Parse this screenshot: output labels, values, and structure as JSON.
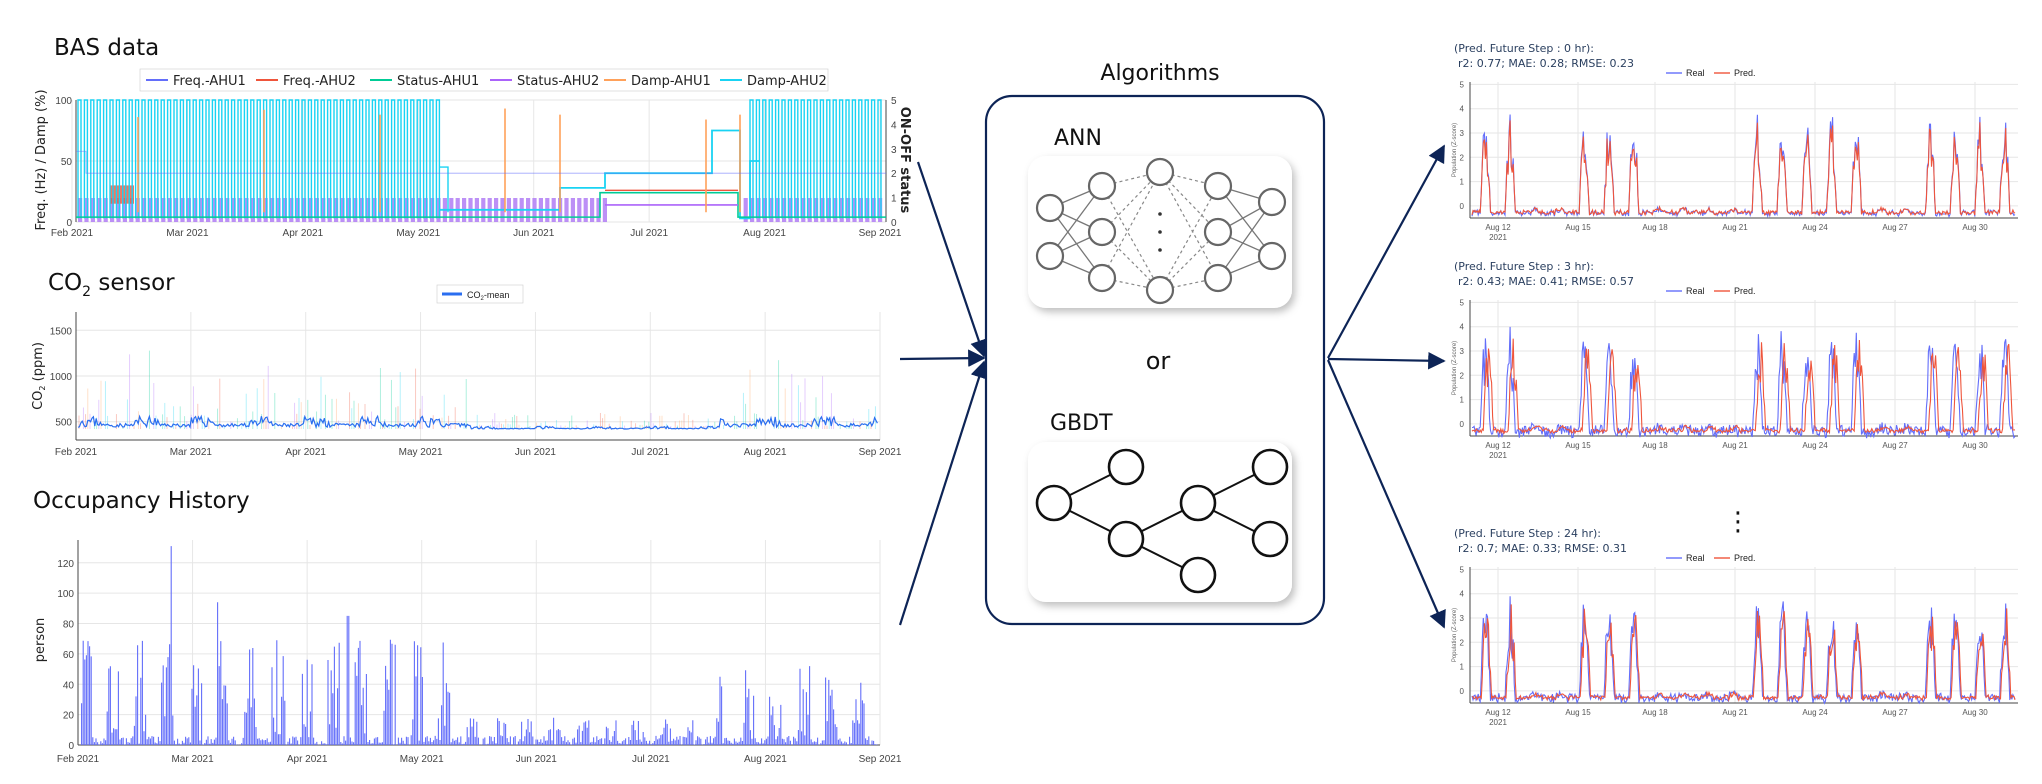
{
  "bas": {
    "title": "BAS data",
    "ylabel": "Freq. (Hz) / Damp (%)",
    "ylabel_right": "ON-OFF status",
    "legend": [
      "Freq.-AHU1",
      "Freq.-AHU2",
      "Status-AHU1",
      "Status-AHU2",
      "Damp-AHU1",
      "Damp-AHU2"
    ],
    "colors": [
      "#636efa",
      "#ef553b",
      "#00cc96",
      "#ab63fa",
      "#ffa15a",
      "#19d3f3"
    ],
    "yticks": [
      "0",
      "50",
      "100"
    ],
    "yticks_right": [
      "0",
      "1",
      "2",
      "3",
      "4",
      "5"
    ],
    "xticks": [
      "Feb 2021",
      "Mar 2021",
      "Apr 2021",
      "May 2021",
      "Jun 2021",
      "Jul 2021",
      "Aug 2021",
      "Sep 2021"
    ]
  },
  "co2": {
    "title_prefix": "CO",
    "title_sub": "2",
    "title_suffix": " sensor",
    "ylabel_prefix": "CO",
    "ylabel_sub": "2",
    "ylabel_suffix": " (ppm)",
    "legend_prefix": "CO",
    "legend_sub": "2",
    "legend_suffix": "-mean",
    "color": "#2a6ef0",
    "yticks": [
      "500",
      "1000",
      "1500"
    ],
    "xticks": [
      "Feb 2021",
      "Mar 2021",
      "Apr 2021",
      "May 2021",
      "Jun 2021",
      "Jul 2021",
      "Aug 2021",
      "Sep 2021"
    ]
  },
  "occupancy": {
    "title": "Occupancy History",
    "ylabel": "person",
    "color": "#636efa",
    "yticks": [
      "0",
      "20",
      "40",
      "60",
      "80",
      "100",
      "120"
    ],
    "xticks": [
      "Feb 2021",
      "Mar 2021",
      "Apr 2021",
      "May 2021",
      "Jun 2021",
      "Jul 2021",
      "Aug 2021",
      "Sep 2021"
    ]
  },
  "algorithms": {
    "title": "Algorithms",
    "ann": "ANN",
    "or": "or",
    "gbdt": "GBDT",
    "border_color": "#0d2456"
  },
  "predictions": {
    "legend_real": "Real",
    "legend_pred": "Pred.",
    "real_color": "#636efa",
    "pred_color": "#ef553b",
    "ylabel": "Population (Z-score)",
    "yticks": [
      "0",
      "1",
      "2",
      "3",
      "4",
      "5"
    ],
    "xticks": [
      "Aug 12",
      "Aug 15",
      "Aug 18",
      "Aug 21",
      "Aug 24",
      "Aug 27",
      "Aug 30"
    ],
    "xtick_year": "2021",
    "ellipsis": "⋮",
    "panels": [
      {
        "header": "(Pred. Future Step : 0 hr):",
        "metrics": "r2: 0.77; MAE: 0.28; RMSE: 0.23"
      },
      {
        "header": "(Pred. Future Step : 3 hr):",
        "metrics": "r2: 0.43; MAE: 0.41; RMSE: 0.57"
      },
      {
        "header": "(Pred. Future Step : 24 hr):",
        "metrics": "r2: 0.7; MAE: 0.33; RMSE: 0.31"
      }
    ]
  },
  "arrows": {
    "color": "#0d2456"
  }
}
